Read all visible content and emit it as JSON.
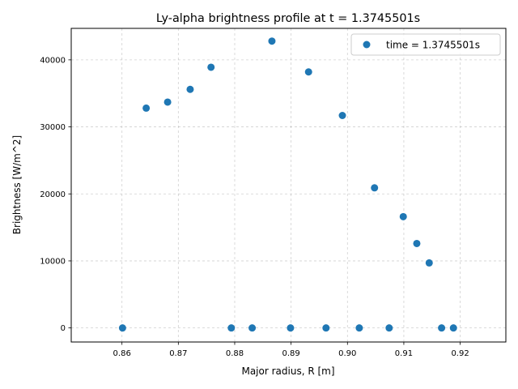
{
  "chart_data": {
    "type": "scatter",
    "title": "Ly-alpha brightness profile at t = 1.3745501s",
    "xlabel": "Major radius, R [m]",
    "ylabel": "Brightness [W/m^2]",
    "xlim": [
      0.851,
      0.9281
    ],
    "ylim": [
      -2100,
      44700
    ],
    "xticks": [
      0.86,
      0.87,
      0.88,
      0.89,
      0.9,
      0.91,
      0.92
    ],
    "xtick_labels": [
      "0.86",
      "0.87",
      "0.88",
      "0.89",
      "0.90",
      "0.91",
      "0.92"
    ],
    "yticks": [
      0,
      10000,
      20000,
      30000,
      40000
    ],
    "ytick_labels": [
      "0",
      "10000",
      "20000",
      "30000",
      "40000"
    ],
    "grid": true,
    "grid_style": "dashed",
    "legend_position": "top-right",
    "series": [
      {
        "name": "time = 1.3745501s",
        "color": "#1f77b4",
        "x": [
          0.8601,
          0.8643,
          0.8681,
          0.8721,
          0.8758,
          0.8794,
          0.8831,
          0.8866,
          0.8899,
          0.8931,
          0.8962,
          0.8991,
          0.9021,
          0.9048,
          0.9074,
          0.9099,
          0.9123,
          0.9145,
          0.9167,
          0.9188
        ],
        "y": [
          0,
          32800,
          33700,
          35600,
          38900,
          0,
          0,
          42800,
          0,
          38200,
          0,
          31700,
          0,
          20900,
          0,
          16600,
          12600,
          9700,
          0,
          0
        ]
      }
    ]
  }
}
